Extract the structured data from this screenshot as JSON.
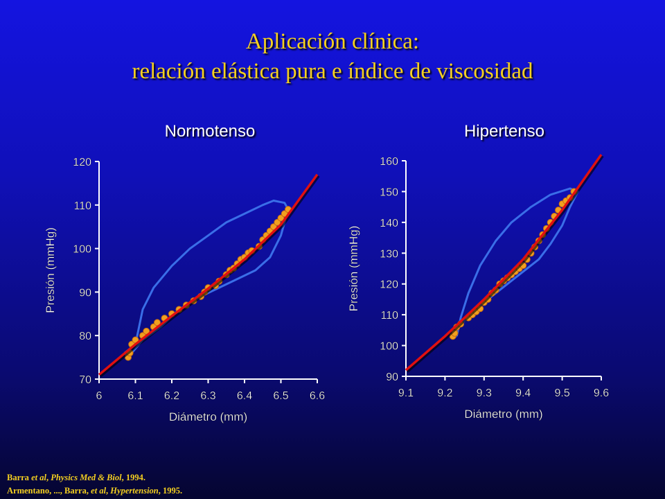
{
  "slide": {
    "title_line1": "Aplicación clínica:",
    "title_line2": "relación elástica pura e índice de viscosidad",
    "colors": {
      "title": "#f5d020",
      "background_top": "#1414e0",
      "background_bottom": "#050530",
      "loop": "#3a6ee8",
      "points": "#f0a020",
      "fit": "#e01010"
    }
  },
  "references": {
    "line1": {
      "authors": "Barra",
      "etal": "et al",
      "sep": ", ",
      "journal": "Physics Med & Biol",
      "year": ", 1994."
    },
    "line2": {
      "authors": "Armentano, ..., Barra, ",
      "etal": "et al",
      "sep": ", ",
      "journal": "Hypertension",
      "year": ", 1995."
    }
  },
  "chart_data": [
    {
      "type": "scatter",
      "title": "Normotenso",
      "xlabel": "Diámetro (mm)",
      "ylabel": "Presión (mmHg)",
      "xlim": [
        6,
        6.6
      ],
      "ylim": [
        70,
        120
      ],
      "xticks": [
        "6",
        "6.1",
        "6.2",
        "6.3",
        "6.4",
        "6.5",
        "6.6"
      ],
      "yticks": [
        "70",
        "80",
        "90",
        "100",
        "110",
        "120"
      ],
      "series": [
        {
          "kind": "loop",
          "points": [
            [
              6.07,
              76
            ],
            [
              6.1,
              78
            ],
            [
              6.12,
              86
            ],
            [
              6.15,
              91
            ],
            [
              6.2,
              96
            ],
            [
              6.25,
              100
            ],
            [
              6.3,
              103
            ],
            [
              6.35,
              106
            ],
            [
              6.4,
              108
            ],
            [
              6.45,
              110
            ],
            [
              6.48,
              111
            ],
            [
              6.51,
              110.5
            ],
            [
              6.52,
              109
            ],
            [
              6.5,
              103
            ],
            [
              6.47,
              98
            ],
            [
              6.43,
              95
            ],
            [
              6.38,
              93
            ],
            [
              6.33,
              91
            ],
            [
              6.28,
              89
            ],
            [
              6.22,
              86
            ],
            [
              6.17,
              82
            ],
            [
              6.12,
              79
            ],
            [
              6.09,
              76
            ],
            [
              6.08,
              75
            ],
            [
              6.07,
              76
            ]
          ]
        },
        {
          "kind": "points",
          "points": [
            [
              6.08,
              75
            ],
            [
              6.085,
              76
            ],
            [
              6.09,
              78
            ],
            [
              6.1,
              79
            ],
            [
              6.12,
              80
            ],
            [
              6.13,
              81
            ],
            [
              6.15,
              82
            ],
            [
              6.16,
              83
            ],
            [
              6.18,
              84
            ],
            [
              6.2,
              85
            ],
            [
              6.22,
              86
            ],
            [
              6.24,
              87
            ],
            [
              6.26,
              88
            ],
            [
              6.28,
              89
            ],
            [
              6.29,
              90
            ],
            [
              6.3,
              91
            ],
            [
              6.32,
              91.5
            ],
            [
              6.33,
              92.5
            ],
            [
              6.35,
              94
            ],
            [
              6.36,
              95
            ],
            [
              6.37,
              95.5
            ],
            [
              6.38,
              96.5
            ],
            [
              6.39,
              97.5
            ],
            [
              6.4,
              98
            ],
            [
              6.41,
              99
            ],
            [
              6.42,
              99.5
            ],
            [
              6.44,
              100.5
            ],
            [
              6.45,
              102
            ],
            [
              6.46,
              103
            ],
            [
              6.47,
              104
            ],
            [
              6.48,
              105
            ],
            [
              6.49,
              106
            ],
            [
              6.5,
              107
            ],
            [
              6.51,
              108
            ],
            [
              6.52,
              109
            ]
          ]
        },
        {
          "kind": "fit",
          "points": [
            [
              6,
              71
            ],
            [
              6.1,
              78
            ],
            [
              6.2,
              84.5
            ],
            [
              6.3,
              90.8
            ],
            [
              6.4,
              97.5
            ],
            [
              6.5,
              105.5
            ],
            [
              6.6,
              117
            ]
          ]
        }
      ]
    },
    {
      "type": "scatter",
      "title": "Hipertenso",
      "xlabel": "Diámetro (mm)",
      "ylabel": "Presión (mmHg)",
      "xlim": [
        9.1,
        9.6
      ],
      "ylim": [
        90,
        160
      ],
      "xticks": [
        "9.1",
        "9.2",
        "9.3",
        "9.4",
        "9.5",
        "9.6"
      ],
      "yticks": [
        "90",
        "100",
        "110",
        "120",
        "130",
        "140",
        "150",
        "160"
      ],
      "series": [
        {
          "kind": "loop",
          "points": [
            [
              9.23,
              103
            ],
            [
              9.24,
              109
            ],
            [
              9.26,
              117
            ],
            [
              9.29,
              126
            ],
            [
              9.33,
              134
            ],
            [
              9.37,
              140
            ],
            [
              9.42,
              145
            ],
            [
              9.47,
              149
            ],
            [
              9.52,
              151
            ],
            [
              9.54,
              150
            ],
            [
              9.52,
              145
            ],
            [
              9.5,
              139
            ],
            [
              9.47,
              133
            ],
            [
              9.44,
              128
            ],
            [
              9.4,
              124
            ],
            [
              9.36,
              120
            ],
            [
              9.32,
              116
            ],
            [
              9.28,
              112
            ],
            [
              9.25,
              108
            ],
            [
              9.23,
              105
            ],
            [
              9.22,
              103
            ],
            [
              9.23,
              103
            ]
          ]
        },
        {
          "kind": "points",
          "points": [
            [
              9.22,
              103
            ],
            [
              9.225,
              104
            ],
            [
              9.23,
              106
            ],
            [
              9.24,
              107
            ],
            [
              9.26,
              109
            ],
            [
              9.27,
              110
            ],
            [
              9.28,
              111
            ],
            [
              9.29,
              112
            ],
            [
              9.3,
              114
            ],
            [
              9.31,
              115
            ],
            [
              9.32,
              117
            ],
            [
              9.33,
              118
            ],
            [
              9.34,
              120
            ],
            [
              9.35,
              121
            ],
            [
              9.36,
              122
            ],
            [
              9.37,
              123
            ],
            [
              9.38,
              124
            ],
            [
              9.39,
              125
            ],
            [
              9.4,
              126
            ],
            [
              9.41,
              128
            ],
            [
              9.42,
              130
            ],
            [
              9.43,
              132
            ],
            [
              9.44,
              134
            ],
            [
              9.45,
              136
            ],
            [
              9.46,
              138
            ],
            [
              9.47,
              140
            ],
            [
              9.48,
              142
            ],
            [
              9.49,
              144
            ],
            [
              9.5,
              146
            ],
            [
              9.51,
              147
            ],
            [
              9.52,
              148
            ],
            [
              9.53,
              150
            ]
          ]
        },
        {
          "kind": "fit",
          "points": [
            [
              9.1,
              92
            ],
            [
              9.2,
              103
            ],
            [
              9.3,
              115
            ],
            [
              9.4,
              128
            ],
            [
              9.5,
              144
            ],
            [
              9.6,
              162
            ]
          ]
        }
      ]
    }
  ]
}
